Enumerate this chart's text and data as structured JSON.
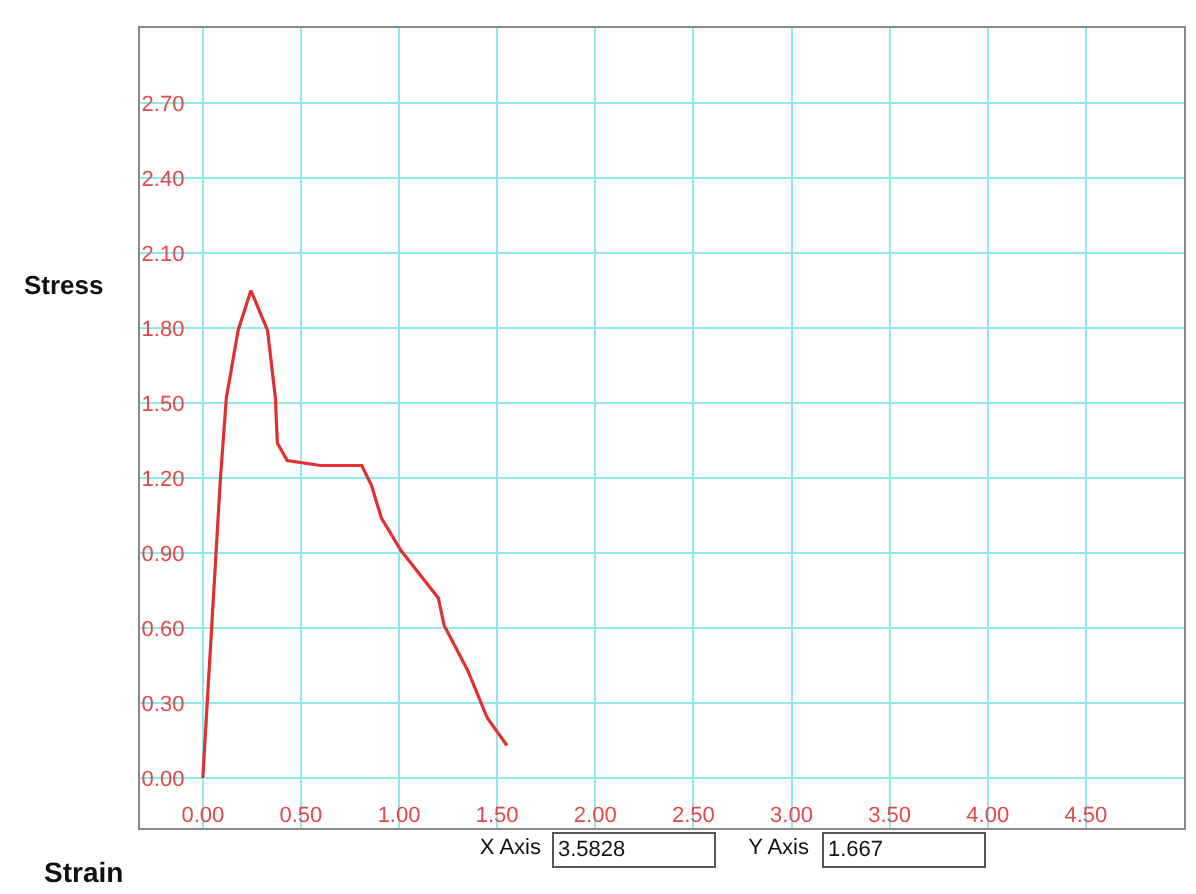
{
  "chart_data": {
    "type": "line",
    "xlabel": "Strain",
    "ylabel": "Stress",
    "x": [
      0,
      0.09,
      0.12,
      0.18,
      0.245,
      0.33,
      0.37,
      0.38,
      0.43,
      0.6,
      0.81,
      0.86,
      0.91,
      1.01,
      1.2,
      1.23,
      1.35,
      1.45,
      1.55
    ],
    "series": [
      {
        "color": "#e03030",
        "values": [
          0,
          1.2,
          1.52,
          1.79,
          1.95,
          1.79,
          1.52,
          1.34,
          1.27,
          1.25,
          1.25,
          1.17,
          1.04,
          0.91,
          0.72,
          0.61,
          0.43,
          0.24,
          0.13
        ]
      }
    ],
    "xlim": [
      -0.32,
      5.0
    ],
    "ylim": [
      -0.2,
      3.0
    ],
    "xticks": [
      {
        "value": 0,
        "label": "0.00"
      },
      {
        "value": 0.5,
        "label": "0.50"
      },
      {
        "value": 1,
        "label": "1.00"
      },
      {
        "value": 1.5,
        "label": "1.50"
      },
      {
        "value": 2,
        "label": "2.00"
      },
      {
        "value": 2.5,
        "label": "2.50"
      },
      {
        "value": 3,
        "label": "3.00"
      },
      {
        "value": 3.5,
        "label": "3.50"
      },
      {
        "value": 4,
        "label": "4.00"
      },
      {
        "value": 4.5,
        "label": "4.50"
      }
    ],
    "yticks": [
      {
        "value": 0,
        "label": "0.00"
      },
      {
        "value": 0.3,
        "label": "0.30"
      },
      {
        "value": 0.6,
        "label": "0.60"
      },
      {
        "value": 0.9,
        "label": "0.90"
      },
      {
        "value": 1.2,
        "label": "1.20"
      },
      {
        "value": 1.5,
        "label": "1.50"
      },
      {
        "value": 1.8,
        "label": "1.80"
      },
      {
        "value": 2.1,
        "label": "2.10"
      },
      {
        "value": 2.4,
        "label": "2.40"
      },
      {
        "value": 2.7,
        "label": "2.70"
      }
    ],
    "grid": true,
    "marker": "none",
    "line_style": "solid",
    "annotations": [
      "X Axis",
      "3.5828",
      "Y Axis",
      "1.667"
    ]
  }
}
